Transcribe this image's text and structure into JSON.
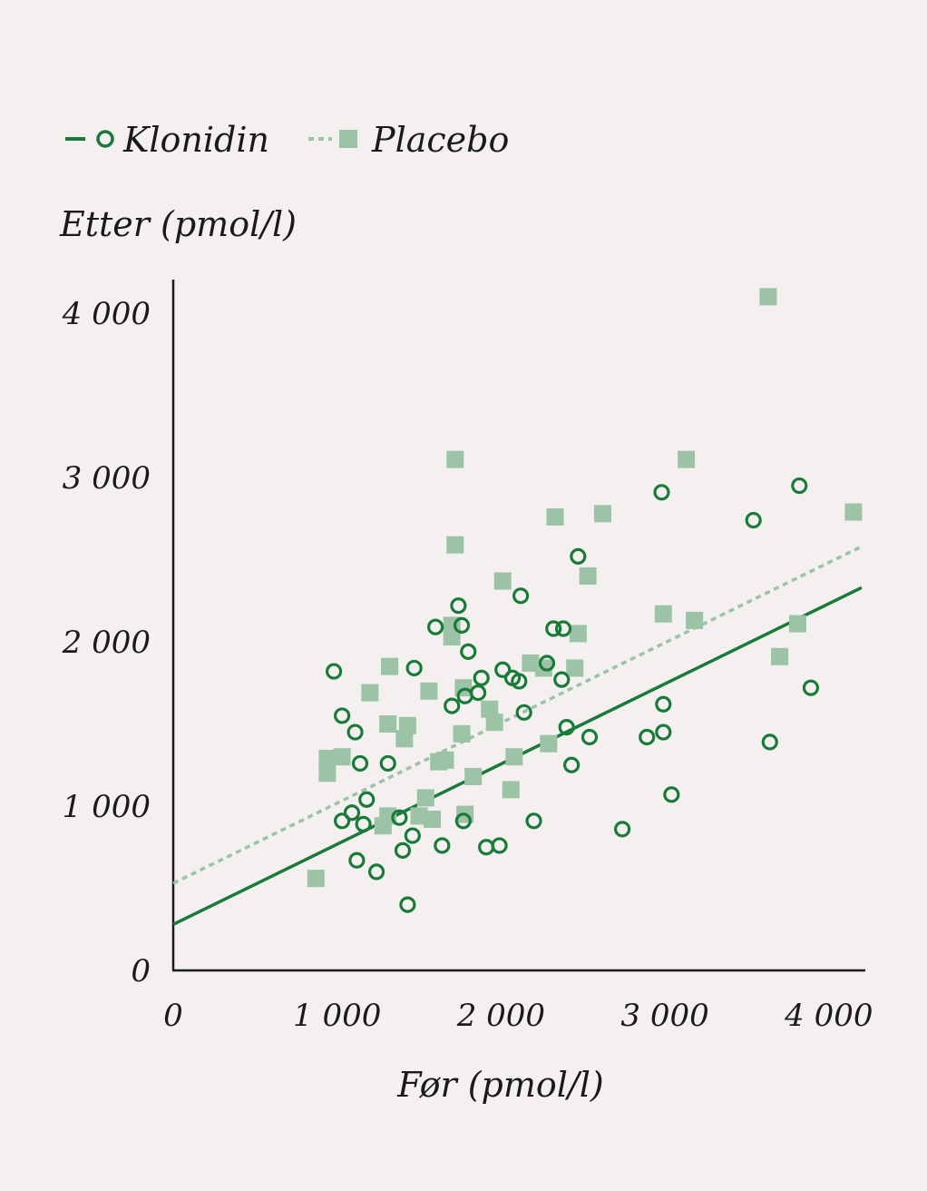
{
  "chart_data": {
    "type": "scatter",
    "xlabel": "Før (pmol/l)",
    "ylabel": "Etter (pmol/l)",
    "xlim": [
      0,
      4200
    ],
    "ylim": [
      0,
      4200
    ],
    "x_ticks": [
      0,
      1000,
      2000,
      3000,
      4000
    ],
    "y_ticks": [
      0,
      1000,
      2000,
      3000,
      4000
    ],
    "x_tick_labels": [
      "0",
      "1 000",
      "2 000",
      "3 000",
      "4 000"
    ],
    "y_tick_labels": [
      "0",
      "1 000",
      "2 000",
      "3 000",
      "4 000"
    ],
    "grid": false,
    "legend": "top-left",
    "series": [
      {
        "name": "Klonidin",
        "marker": "circle",
        "color": "#1a7a3a",
        "trend_line": {
          "style": "solid",
          "x": [
            0,
            4200
          ],
          "y": [
            280,
            2330
          ]
        },
        "points": [
          [
            980,
            1820
          ],
          [
            1030,
            1550
          ],
          [
            1110,
            1450
          ],
          [
            1140,
            1260
          ],
          [
            1310,
            1260
          ],
          [
            1180,
            1040
          ],
          [
            1030,
            910
          ],
          [
            1090,
            960
          ],
          [
            1160,
            890
          ],
          [
            1380,
            930
          ],
          [
            1120,
            670
          ],
          [
            1240,
            600
          ],
          [
            1400,
            730
          ],
          [
            1460,
            820
          ],
          [
            1430,
            400
          ],
          [
            1470,
            1840
          ],
          [
            1600,
            2090
          ],
          [
            1740,
            2220
          ],
          [
            1760,
            2100
          ],
          [
            1800,
            1940
          ],
          [
            1700,
            1610
          ],
          [
            1780,
            1670
          ],
          [
            1860,
            1690
          ],
          [
            1880,
            1780
          ],
          [
            2010,
            1830
          ],
          [
            2070,
            1780
          ],
          [
            2110,
            1760
          ],
          [
            2120,
            2280
          ],
          [
            2140,
            1570
          ],
          [
            1770,
            910
          ],
          [
            1640,
            760
          ],
          [
            1910,
            750
          ],
          [
            1990,
            760
          ],
          [
            2200,
            910
          ],
          [
            2280,
            1870
          ],
          [
            2320,
            2080
          ],
          [
            2380,
            2080
          ],
          [
            2370,
            1770
          ],
          [
            2400,
            1480
          ],
          [
            2430,
            1250
          ],
          [
            2470,
            2520
          ],
          [
            2540,
            1420
          ],
          [
            2740,
            860
          ],
          [
            2890,
            1420
          ],
          [
            2990,
            1450
          ],
          [
            2980,
            2910
          ],
          [
            2990,
            1620
          ],
          [
            3040,
            1070
          ],
          [
            3540,
            2740
          ],
          [
            3640,
            1390
          ],
          [
            3820,
            2950
          ],
          [
            3890,
            1720
          ]
        ]
      },
      {
        "name": "Placebo",
        "marker": "square",
        "color": "#9cc3a5",
        "trend_line": {
          "style": "dotted",
          "x": [
            0,
            4200
          ],
          "y": [
            530,
            2580
          ]
        },
        "points": [
          [
            870,
            560
          ],
          [
            940,
            1290
          ],
          [
            940,
            1200
          ],
          [
            1030,
            1300
          ],
          [
            1200,
            1690
          ],
          [
            1310,
            1500
          ],
          [
            1320,
            1850
          ],
          [
            1280,
            880
          ],
          [
            1310,
            940
          ],
          [
            1410,
            1410
          ],
          [
            1430,
            1490
          ],
          [
            1560,
            1700
          ],
          [
            1540,
            1050
          ],
          [
            1500,
            940
          ],
          [
            1580,
            920
          ],
          [
            1620,
            1270
          ],
          [
            1660,
            1280
          ],
          [
            1700,
            2030
          ],
          [
            1700,
            2100
          ],
          [
            1720,
            2590
          ],
          [
            1720,
            3110
          ],
          [
            1770,
            1720
          ],
          [
            1760,
            1440
          ],
          [
            1780,
            950
          ],
          [
            1830,
            1180
          ],
          [
            1930,
            1590
          ],
          [
            1960,
            1510
          ],
          [
            2010,
            2370
          ],
          [
            2060,
            1100
          ],
          [
            2080,
            1300
          ],
          [
            2180,
            1870
          ],
          [
            2260,
            1840
          ],
          [
            2290,
            1380
          ],
          [
            2330,
            2760
          ],
          [
            2450,
            1840
          ],
          [
            2470,
            2050
          ],
          [
            2530,
            2400
          ],
          [
            2620,
            2780
          ],
          [
            2990,
            2170
          ],
          [
            3130,
            3110
          ],
          [
            3180,
            2130
          ],
          [
            3630,
            4100
          ],
          [
            3700,
            1910
          ],
          [
            3810,
            2110
          ],
          [
            4150,
            2790
          ]
        ]
      }
    ]
  }
}
